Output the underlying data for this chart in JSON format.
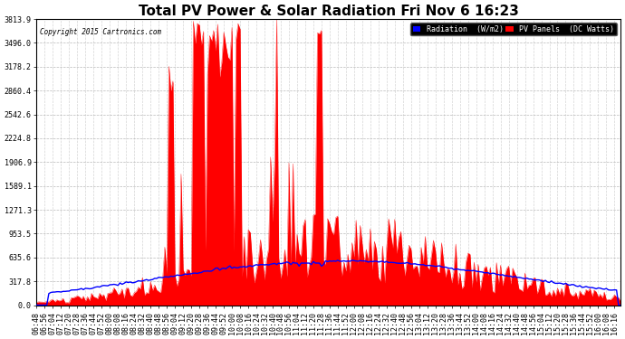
{
  "title": "Total PV Power & Solar Radiation Fri Nov 6 16:23",
  "copyright": "Copyright 2015 Cartronics.com",
  "legend_labels": [
    "Radiation  (W/m2)",
    "PV Panels  (DC Watts)"
  ],
  "legend_color_rad": "#0000ff",
  "legend_color_pv": "#ff0000",
  "legend_bg": "#000000",
  "legend_text_color": "#ffffff",
  "y_max": 3813.9,
  "y_ticks": [
    0.0,
    317.8,
    635.6,
    953.5,
    1271.3,
    1589.1,
    1906.9,
    2224.8,
    2542.6,
    2860.4,
    3178.2,
    3496.0,
    3813.9
  ],
  "bg_color": "#ffffff",
  "grid_color": "#aaaaaa",
  "title_fontsize": 11,
  "axis_fontsize": 6,
  "pv_color": "#ff0000",
  "rad_color": "#0000ff"
}
